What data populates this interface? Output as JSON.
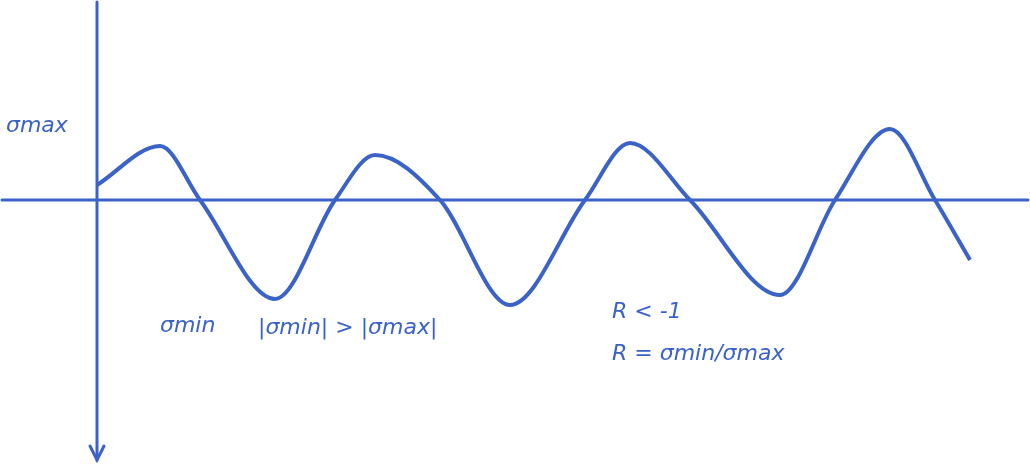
{
  "chart_data": {
    "type": "line",
    "color": "#3a62c8",
    "x": [
      0,
      6.3,
      10.3,
      17.8,
      23.8,
      27.8,
      34.3,
      41.3,
      48.8,
      53.3,
      59.3,
      68.3,
      73.8,
      79.3,
      83.8,
      87.3
    ],
    "values": [
      1.5,
      5.4,
      0,
      -9.9,
      0,
      4.5,
      0,
      -10.5,
      0,
      5.7,
      0,
      -9.5,
      0,
      7.1,
      0,
      -6.0
    ],
    "xlim": [
      -9.7,
      93.3
    ],
    "ylim": [
      -26.4,
      20
    ],
    "tick_labels": false,
    "grid": false,
    "annotations": [
      "σmax",
      "σmin",
      "|σmin| > |σmax|",
      "R < -1",
      "R = σmin/σmax"
    ]
  }
}
